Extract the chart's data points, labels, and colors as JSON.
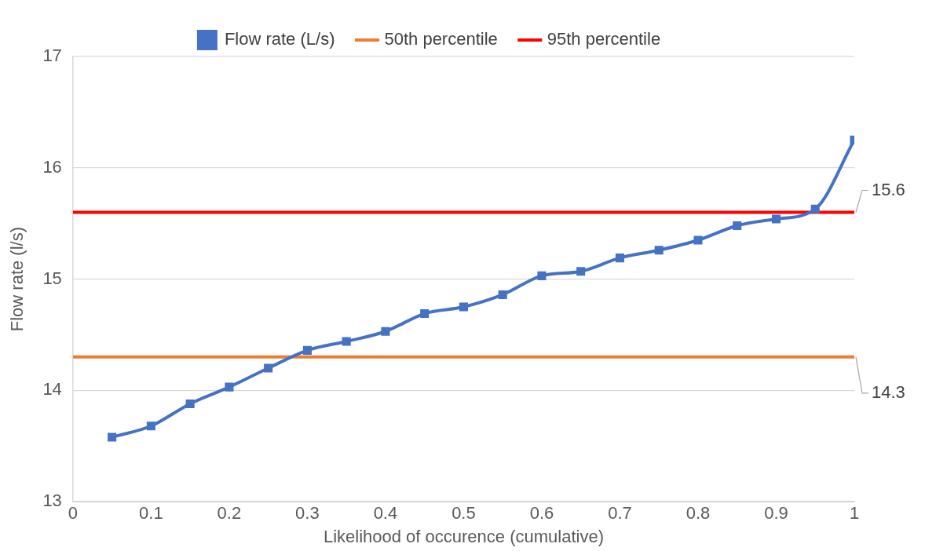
{
  "chart_data": {
    "type": "line",
    "xlabel": "Likelihood of occurence (cumulative)",
    "ylabel": "Flow rate (l/s)",
    "x": [
      0.05,
      0.1,
      0.15,
      0.2,
      0.25,
      0.3,
      0.35,
      0.4,
      0.45,
      0.5,
      0.55,
      0.6,
      0.65,
      0.7,
      0.75,
      0.8,
      0.85,
      0.9,
      0.95,
      1
    ],
    "series": [
      {
        "name": "Flow rate (L/s)",
        "color": "#4472c4",
        "marker": "square",
        "values": [
          13.58,
          13.68,
          13.88,
          14.03,
          14.2,
          14.36,
          14.44,
          14.53,
          14.69,
          14.75,
          14.86,
          15.03,
          15.07,
          15.19,
          15.26,
          15.35,
          15.48,
          15.54,
          15.63,
          16.25
        ]
      }
    ],
    "ref_lines": [
      {
        "axis": "y",
        "value": 14.3,
        "label": "50th percentile",
        "color": "#ed7d31"
      },
      {
        "axis": "y",
        "value": 15.6,
        "label": "95th percentile",
        "color": "#ff0000"
      }
    ],
    "xlim": [
      0,
      1
    ],
    "xticks": [
      0,
      0.1,
      0.2,
      0.3,
      0.4,
      0.5,
      0.6,
      0.7,
      0.8,
      0.9,
      1
    ],
    "ylim": [
      13,
      17
    ],
    "yticks": [
      13,
      14,
      15,
      16,
      17
    ],
    "grid": "y",
    "legend": "top",
    "line_style": "solid",
    "annotations": [
      {
        "text": "15.6",
        "x": 1,
        "y": 15.6
      },
      {
        "text": "14.3",
        "x": 1,
        "y": 14.3
      }
    ]
  }
}
